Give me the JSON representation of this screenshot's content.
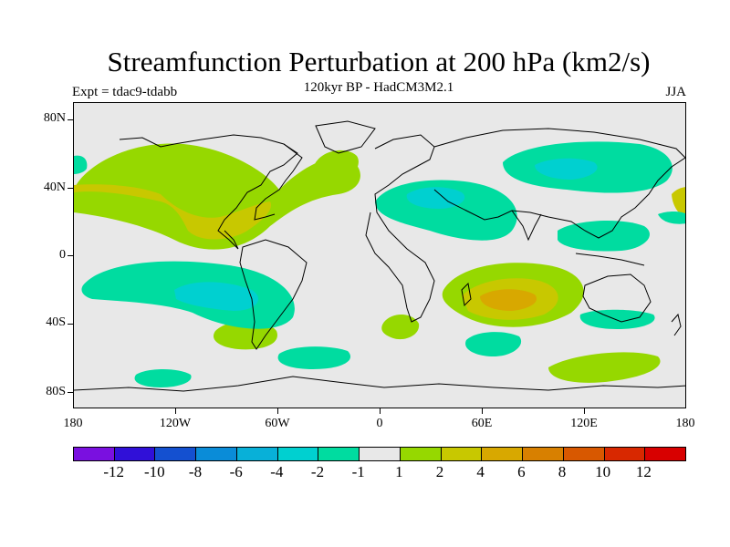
{
  "title": "Streamfunction Perturbation at 200 hPa (km2/s)",
  "experiment": "Expt = tdac9-tdabb",
  "subtitle": "120kyr BP - HadCM3M2.1",
  "season": "JJA",
  "y_axis_labels": [
    "80N",
    "40N",
    "0",
    "40S",
    "80S"
  ],
  "x_axis_labels": [
    "180",
    "120W",
    "60W",
    "0",
    "60E",
    "120E",
    "180"
  ],
  "colorbar": {
    "colors": [
      "#7a10e0",
      "#3010d8",
      "#1450d0",
      "#0a8cd8",
      "#08b0d8",
      "#00d0d0",
      "#00dca0",
      "#e8e8e8",
      "#96d800",
      "#c8c800",
      "#d8a800",
      "#d88000",
      "#d85800",
      "#d82800",
      "#d80000"
    ],
    "labels": [
      "-12",
      "-10",
      "-8",
      "-6",
      "-4",
      "-2",
      "-1",
      "1",
      "2",
      "4",
      "6",
      "8",
      "10",
      "12"
    ]
  },
  "map_colors": {
    "land_bg": "#e8e8e8",
    "pos_low": "#96d800",
    "pos_mid": "#c8c800",
    "pos_high": "#d8a800",
    "neg_low": "#00dca0",
    "neg_mid": "#00d0d0",
    "coast": "#000000"
  }
}
